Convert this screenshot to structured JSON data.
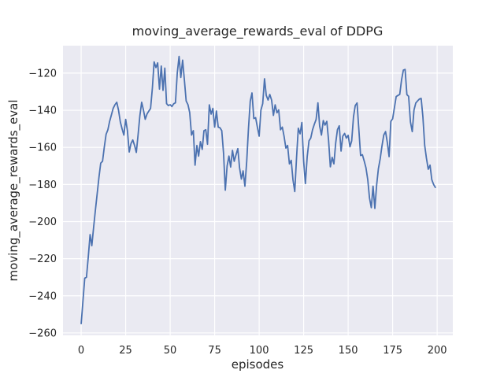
{
  "figure": {
    "background": "#ffffff",
    "plot_background": "#eaeaf2",
    "grid_color": "#ffffff",
    "text_color": "#262626"
  },
  "chart_data": {
    "type": "line",
    "title": "moving_average_rewards_eval of DDPG",
    "xlabel": "episodes",
    "ylabel": "moving_average_rewards_eval",
    "legend": "none",
    "grid": "on",
    "line_color": "#4c72b0",
    "x_ticks": [
      0,
      25,
      50,
      75,
      100,
      125,
      150,
      175,
      200
    ],
    "y_ticks": [
      -120,
      -140,
      -160,
      -180,
      -200,
      -220,
      -240,
      -260
    ],
    "xlim": [
      -10.2,
      208.8
    ],
    "ylim": [
      -261.3,
      -105.2
    ],
    "x_start": 0,
    "x_step": 1,
    "values": [
      -255.0,
      -243.0,
      -230.5,
      -230.0,
      -219.0,
      -207.0,
      -213.0,
      -203.0,
      -194.0,
      -185.0,
      -176.0,
      -168.5,
      -167.5,
      -160.0,
      -153.0,
      -150.5,
      -146.0,
      -142.5,
      -139.0,
      -137.0,
      -135.7,
      -140.0,
      -146.3,
      -150.0,
      -153.4,
      -144.9,
      -151.0,
      -162.5,
      -158.0,
      -156.0,
      -159.0,
      -162.7,
      -153.0,
      -143.0,
      -135.7,
      -140.0,
      -144.9,
      -142.0,
      -140.5,
      -139.0,
      -128.0,
      -114.0,
      -117.0,
      -114.5,
      -128.6,
      -116.2,
      -129.3,
      -117.3,
      -136.4,
      -137.5,
      -137.0,
      -138.0,
      -136.5,
      -136.0,
      -120.0,
      -111.0,
      -122.3,
      -113.0,
      -124.0,
      -135.0,
      -137.0,
      -141.3,
      -153.4,
      -151.0,
      -169.6,
      -159.0,
      -164.7,
      -156.9,
      -161.1,
      -151.0,
      -150.5,
      -158.3,
      -137.1,
      -142.1,
      -139.0,
      -149.1,
      -140.4,
      -149.1,
      -149.5,
      -151.0,
      -163.3,
      -183.1,
      -170.0,
      -164.7,
      -170.6,
      -161.6,
      -167.5,
      -164.0,
      -160.7,
      -171.0,
      -177.1,
      -172.7,
      -180.9,
      -167.5,
      -150.0,
      -135.0,
      -130.7,
      -144.5,
      -144.0,
      -149.0,
      -154.0,
      -140.0,
      -136.4,
      -123.0,
      -132.0,
      -134.5,
      -131.5,
      -134.5,
      -142.8,
      -137.1,
      -141.4,
      -139.8,
      -150.5,
      -149.1,
      -154.0,
      -160.4,
      -159.0,
      -168.9,
      -167.0,
      -177.4,
      -183.8,
      -166.0,
      -149.7,
      -152.7,
      -146.6,
      -167.5,
      -179.5,
      -165.0,
      -156.5,
      -155.0,
      -150.5,
      -147.5,
      -145.0,
      -136.0,
      -148.5,
      -153.4,
      -145.6,
      -148.0,
      -146.0,
      -156.0,
      -170.5,
      -165.4,
      -168.9,
      -157.6,
      -150.5,
      -148.4,
      -162.0,
      -154.0,
      -152.5,
      -155.0,
      -153.5,
      -159.7,
      -156.5,
      -143.5,
      -137.5,
      -136.1,
      -150.5,
      -164.4,
      -164.0,
      -167.2,
      -171.0,
      -177.4,
      -187.3,
      -192.5,
      -180.9,
      -192.9,
      -180.2,
      -171.5,
      -166.1,
      -159.4,
      -153.4,
      -151.5,
      -157.3,
      -165.0,
      -146.0,
      -144.6,
      -138.5,
      -132.6,
      -132.0,
      -131.5,
      -123.7,
      -118.4,
      -118.0,
      -131.6,
      -132.5,
      -146.3,
      -151.5,
      -139.9,
      -136.1,
      -135.0,
      -134.0,
      -133.6,
      -143.5,
      -159.0,
      -165.8,
      -171.8,
      -169.6,
      -177.4,
      -180.0,
      -181.6
    ]
  }
}
